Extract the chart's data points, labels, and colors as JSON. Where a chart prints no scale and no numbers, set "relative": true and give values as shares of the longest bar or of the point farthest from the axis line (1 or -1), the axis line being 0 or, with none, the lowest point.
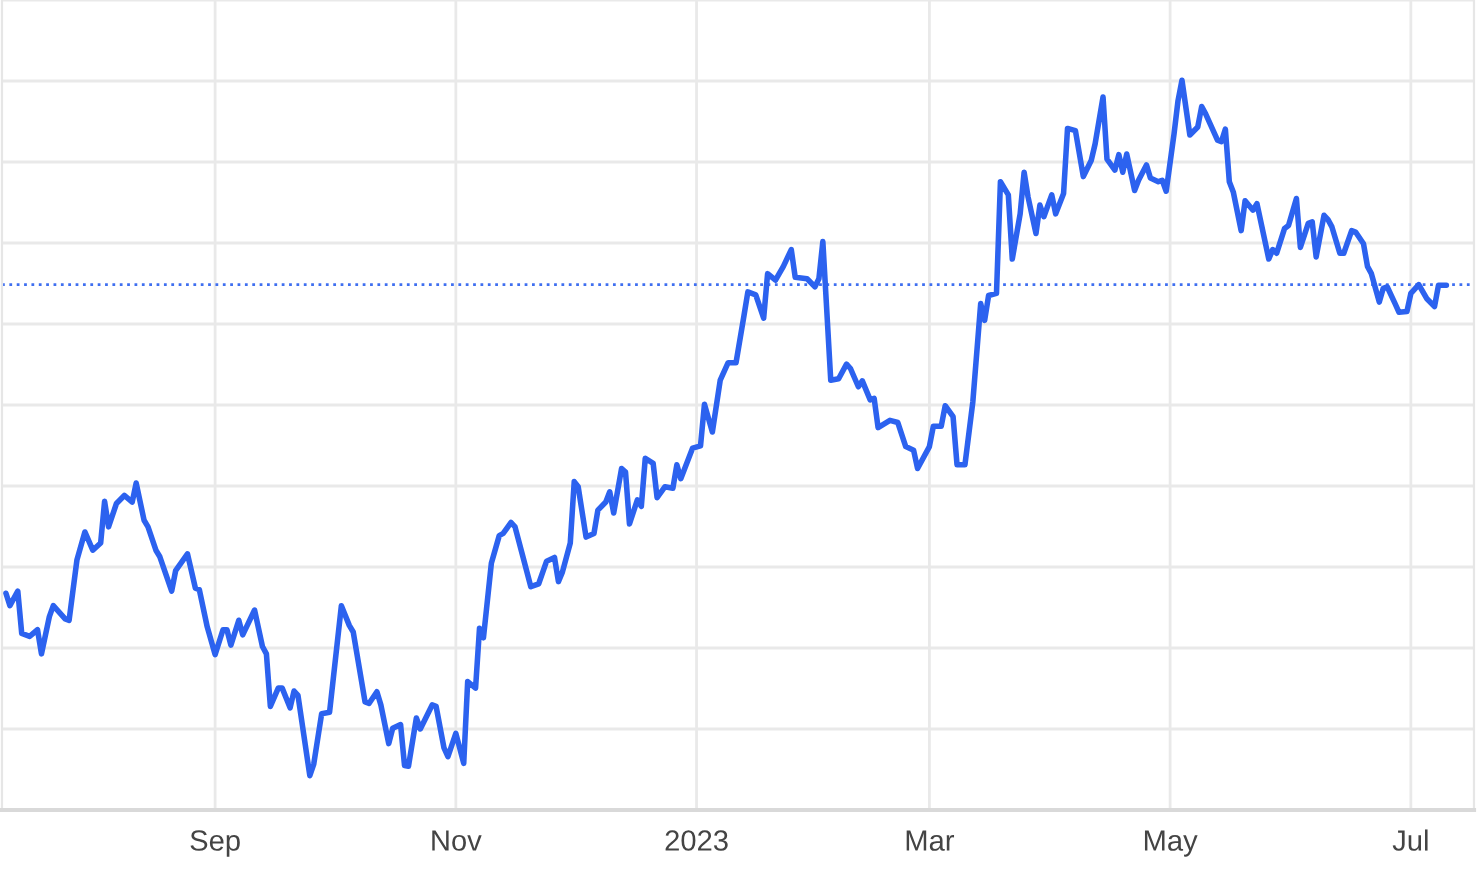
{
  "chart_data": {
    "type": "line",
    "relative": true,
    "grid": true,
    "xlim": [
      "2022-07-09",
      "2023-07-17"
    ],
    "xticks": [
      {
        "value": "2022-09-01",
        "label": "Sep"
      },
      {
        "value": "2022-11-01",
        "label": "Nov"
      },
      {
        "value": "2023-01-01",
        "label": "2023"
      },
      {
        "value": "2023-03-01",
        "label": "Mar"
      },
      {
        "value": "2023-05-01",
        "label": "May"
      },
      {
        "value": "2023-07-01",
        "label": "Jul"
      }
    ],
    "ref_lines": [
      {
        "axis": "y",
        "value": 0.72,
        "color": "#3f6ff0",
        "line_style": "dotted"
      }
    ],
    "x": [
      "2022-07-10",
      "2022-07-11",
      "2022-07-13",
      "2022-07-14",
      "2022-07-16",
      "2022-07-18",
      "2022-07-19",
      "2022-07-21",
      "2022-07-22",
      "2022-07-25",
      "2022-07-26",
      "2022-07-28",
      "2022-07-30",
      "2022-08-01",
      "2022-08-03",
      "2022-08-04",
      "2022-08-05",
      "2022-08-07",
      "2022-08-09",
      "2022-08-11",
      "2022-08-12",
      "2022-08-14",
      "2022-08-15",
      "2022-08-17",
      "2022-08-18",
      "2022-08-21",
      "2022-08-22",
      "2022-08-25",
      "2022-08-27",
      "2022-08-28",
      "2022-08-30",
      "2022-09-01",
      "2022-09-03",
      "2022-09-04",
      "2022-09-05",
      "2022-09-07",
      "2022-09-08",
      "2022-09-11",
      "2022-09-13",
      "2022-09-14",
      "2022-09-15",
      "2022-09-17",
      "2022-09-18",
      "2022-09-20",
      "2022-09-21",
      "2022-09-22",
      "2022-09-25",
      "2022-09-26",
      "2022-09-28",
      "2022-09-30",
      "2022-10-03",
      "2022-10-05",
      "2022-10-06",
      "2022-10-09",
      "2022-10-10",
      "2022-10-12",
      "2022-10-13",
      "2022-10-15",
      "2022-10-16",
      "2022-10-18",
      "2022-10-19",
      "2022-10-20",
      "2022-10-22",
      "2022-10-23",
      "2022-10-26",
      "2022-10-27",
      "2022-10-29",
      "2022-10-30",
      "2022-11-01",
      "2022-11-03",
      "2022-11-04",
      "2022-11-06",
      "2022-11-07",
      "2022-11-08",
      "2022-11-10",
      "2022-11-12",
      "2022-11-13",
      "2022-11-15",
      "2022-11-16",
      "2022-11-18",
      "2022-11-20",
      "2022-11-22",
      "2022-11-24",
      "2022-11-26",
      "2022-11-27",
      "2022-11-28",
      "2022-11-30",
      "2022-12-01",
      "2022-12-02",
      "2022-12-04",
      "2022-12-06",
      "2022-12-07",
      "2022-12-09",
      "2022-12-10",
      "2022-12-11",
      "2022-12-13",
      "2022-12-14",
      "2022-12-15",
      "2022-12-17",
      "2022-12-18",
      "2022-12-19",
      "2022-12-21",
      "2022-12-22",
      "2022-12-24",
      "2022-12-26",
      "2022-12-27",
      "2022-12-28",
      "2022-12-31",
      "2023-01-02",
      "2023-01-03",
      "2023-01-05",
      "2023-01-07",
      "2023-01-09",
      "2023-01-11",
      "2023-01-13",
      "2023-01-14",
      "2023-01-16",
      "2023-01-18",
      "2023-01-19",
      "2023-01-21",
      "2023-01-23",
      "2023-01-25",
      "2023-01-26",
      "2023-01-29",
      "2023-01-31",
      "2023-02-01",
      "2023-02-02",
      "2023-02-04",
      "2023-02-06",
      "2023-02-08",
      "2023-02-09",
      "2023-02-11",
      "2023-02-12",
      "2023-02-14",
      "2023-02-15",
      "2023-02-16",
      "2023-02-19",
      "2023-02-21",
      "2023-02-23",
      "2023-02-25",
      "2023-02-26",
      "2023-03-01",
      "2023-03-02",
      "2023-03-04",
      "2023-03-05",
      "2023-03-07",
      "2023-03-08",
      "2023-03-10",
      "2023-03-12",
      "2023-03-14",
      "2023-03-15",
      "2023-03-16",
      "2023-03-18",
      "2023-03-19",
      "2023-03-21",
      "2023-03-22",
      "2023-03-24",
      "2023-03-25",
      "2023-03-26",
      "2023-03-28",
      "2023-03-29",
      "2023-03-30",
      "2023-04-01",
      "2023-04-02",
      "2023-04-04",
      "2023-04-05",
      "2023-04-07",
      "2023-04-09",
      "2023-04-11",
      "2023-04-12",
      "2023-04-14",
      "2023-04-15",
      "2023-04-17",
      "2023-04-18",
      "2023-04-19",
      "2023-04-20",
      "2023-04-22",
      "2023-04-23",
      "2023-04-25",
      "2023-04-26",
      "2023-04-28",
      "2023-04-29",
      "2023-04-30",
      "2023-05-02",
      "2023-05-03",
      "2023-05-04",
      "2023-05-06",
      "2023-05-08",
      "2023-05-09",
      "2023-05-10",
      "2023-05-13",
      "2023-05-14",
      "2023-05-15",
      "2023-05-16",
      "2023-05-17",
      "2023-05-19",
      "2023-05-20",
      "2023-05-22",
      "2023-05-23",
      "2023-05-26",
      "2023-05-27",
      "2023-05-28",
      "2023-05-30",
      "2023-05-31",
      "2023-06-02",
      "2023-06-03",
      "2023-06-05",
      "2023-06-06",
      "2023-06-07",
      "2023-06-09",
      "2023-06-10",
      "2023-06-11",
      "2023-06-13",
      "2023-06-14",
      "2023-06-16",
      "2023-06-17",
      "2023-06-19",
      "2023-06-20",
      "2023-06-21",
      "2023-06-23",
      "2023-06-24",
      "2023-06-25",
      "2023-06-27",
      "2023-06-28",
      "2023-06-30",
      "2023-07-01",
      "2023-07-03",
      "2023-07-05",
      "2023-07-07",
      "2023-07-08",
      "2023-07-10"
    ],
    "series": [
      {
        "color": "#2c62ef",
        "values": [
          0.297,
          0.28,
          0.3,
          0.242,
          0.238,
          0.247,
          0.214,
          0.265,
          0.28,
          0.262,
          0.26,
          0.343,
          0.381,
          0.356,
          0.366,
          0.423,
          0.388,
          0.42,
          0.431,
          0.422,
          0.448,
          0.397,
          0.388,
          0.356,
          0.347,
          0.3,
          0.328,
          0.351,
          0.304,
          0.302,
          0.251,
          0.213,
          0.247,
          0.247,
          0.226,
          0.26,
          0.24,
          0.274,
          0.224,
          0.214,
          0.142,
          0.167,
          0.167,
          0.14,
          0.163,
          0.157,
          0.047,
          0.063,
          0.132,
          0.134,
          0.28,
          0.253,
          0.244,
          0.148,
          0.146,
          0.162,
          0.144,
          0.091,
          0.112,
          0.117,
          0.061,
          0.06,
          0.126,
          0.111,
          0.144,
          0.142,
          0.085,
          0.073,
          0.105,
          0.064,
          0.176,
          0.167,
          0.249,
          0.236,
          0.338,
          0.376,
          0.379,
          0.394,
          0.388,
          0.347,
          0.306,
          0.31,
          0.341,
          0.346,
          0.313,
          0.326,
          0.366,
          0.45,
          0.443,
          0.374,
          0.379,
          0.411,
          0.422,
          0.436,
          0.407,
          0.468,
          0.463,
          0.392,
          0.425,
          0.416,
          0.482,
          0.475,
          0.428,
          0.443,
          0.441,
          0.473,
          0.454,
          0.496,
          0.499,
          0.556,
          0.518,
          0.589,
          0.613,
          0.613,
          0.677,
          0.71,
          0.706,
          0.674,
          0.735,
          0.726,
          0.745,
          0.768,
          0.73,
          0.728,
          0.717,
          0.728,
          0.779,
          0.589,
          0.591,
          0.611,
          0.605,
          0.58,
          0.588,
          0.562,
          0.564,
          0.524,
          0.534,
          0.531,
          0.498,
          0.493,
          0.468,
          0.498,
          0.526,
          0.526,
          0.554,
          0.539,
          0.473,
          0.473,
          0.559,
          0.694,
          0.671,
          0.705,
          0.708,
          0.861,
          0.843,
          0.755,
          0.817,
          0.874,
          0.84,
          0.79,
          0.829,
          0.813,
          0.843,
          0.817,
          0.845,
          0.934,
          0.931,
          0.868,
          0.89,
          0.913,
          0.977,
          0.892,
          0.877,
          0.898,
          0.874,
          0.899,
          0.849,
          0.863,
          0.884,
          0.866,
          0.861,
          0.863,
          0.848,
          0.927,
          0.972,
          1.0,
          0.925,
          0.936,
          0.964,
          0.954,
          0.918,
          0.916,
          0.933,
          0.861,
          0.847,
          0.794,
          0.835,
          0.822,
          0.831,
          0.755,
          0.768,
          0.763,
          0.797,
          0.801,
          0.838,
          0.771,
          0.804,
          0.806,
          0.758,
          0.815,
          0.809,
          0.799,
          0.763,
          0.763,
          0.794,
          0.792,
          0.776,
          0.745,
          0.735,
          0.696,
          0.715,
          0.717,
          0.694,
          0.682,
          0.683,
          0.708,
          0.72,
          0.701,
          0.69,
          0.719,
          0.719
        ]
      }
    ]
  }
}
